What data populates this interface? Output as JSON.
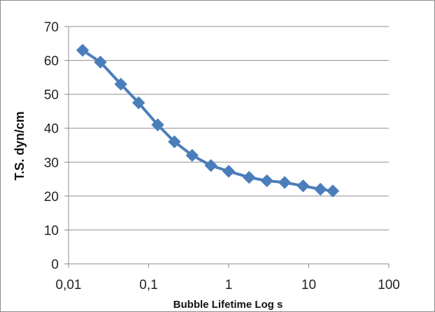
{
  "chart_data": {
    "type": "line",
    "title": "",
    "xlabel": "Bubble Lifetime Log s",
    "ylabel": "T.S. dyn/cm",
    "x_scale": "log",
    "xlim": [
      0.01,
      100
    ],
    "ylim": [
      0,
      70
    ],
    "x_ticks": [
      "0,01",
      "0,1",
      "1",
      "10",
      "100"
    ],
    "y_ticks": [
      "0",
      "10",
      "20",
      "30",
      "40",
      "50",
      "60",
      "70"
    ],
    "grid": "horizontal",
    "legend": "none",
    "series": [
      {
        "color": "#4a7ebb",
        "marker": "diamond",
        "x": [
          0.015,
          0.025,
          0.045,
          0.075,
          0.13,
          0.21,
          0.35,
          0.6,
          1.0,
          1.8,
          3.0,
          5.0,
          8.5,
          14,
          20
        ],
        "y": [
          63,
          59.5,
          53,
          47.5,
          41,
          36,
          32,
          29,
          27.3,
          25.5,
          24.5,
          24,
          23,
          22,
          21.5
        ]
      }
    ]
  }
}
